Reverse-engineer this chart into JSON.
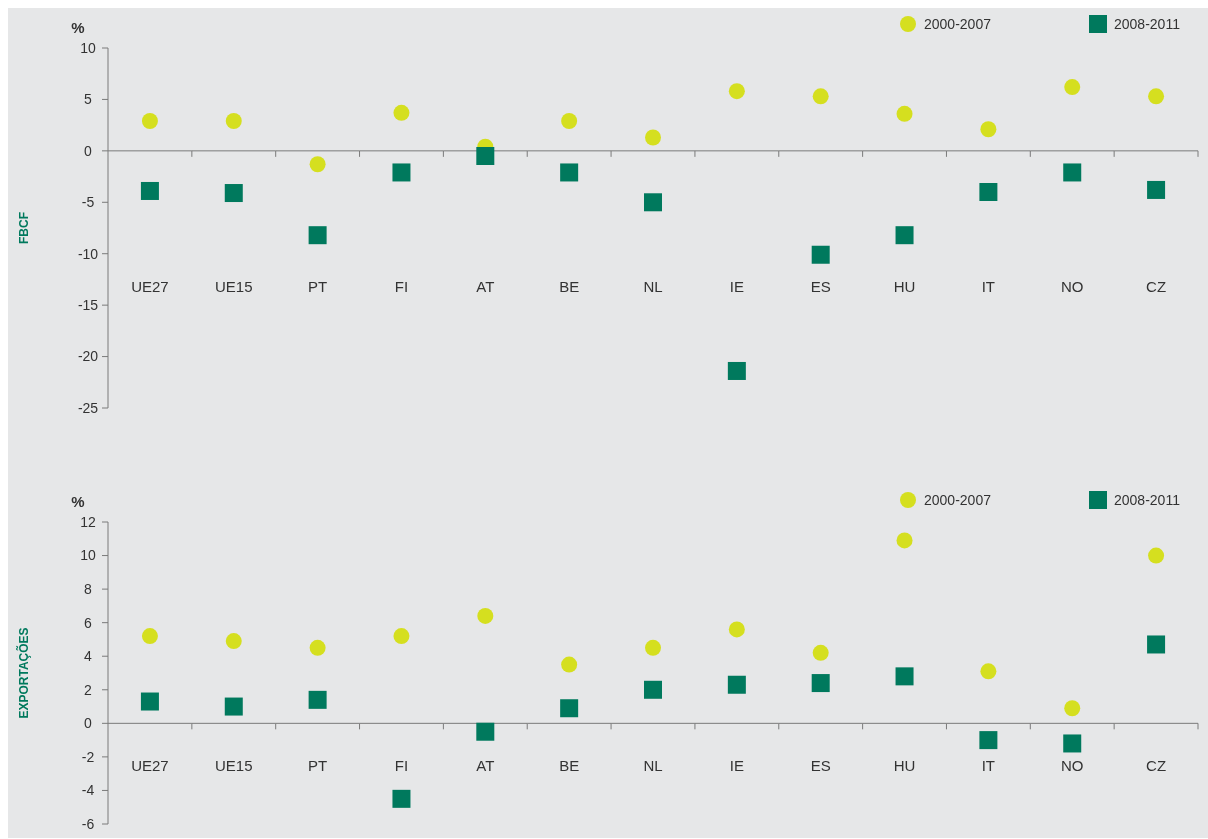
{
  "chart_data": [
    {
      "type": "scatter",
      "ylabel": "FBCF",
      "annotations": [
        "%"
      ],
      "categories": [
        "UE27",
        "UE15",
        "PT",
        "FI",
        "AT",
        "BE",
        "NL",
        "IE",
        "ES",
        "HU",
        "IT",
        "NO",
        "CZ"
      ],
      "ylim": [
        -25,
        10
      ],
      "yticks": [
        -25,
        -20,
        -15,
        -10,
        -5,
        0,
        5,
        10
      ],
      "legend": "top right",
      "grid": false,
      "series": [
        {
          "name": "2000-2007",
          "color": "#d5df1f",
          "marker": "circle",
          "values": [
            2.9,
            2.9,
            -1.3,
            3.7,
            0.4,
            2.9,
            1.3,
            5.8,
            5.3,
            3.6,
            2.1,
            6.2,
            5.3
          ]
        },
        {
          "name": "2008-2011",
          "color": "#00795d",
          "marker": "square",
          "values": [
            -3.9,
            -4.1,
            -8.2,
            -2.1,
            -0.5,
            -2.1,
            -5,
            -21.4,
            -10.1,
            -8.2,
            -4,
            -2.1,
            -3.8
          ]
        }
      ]
    },
    {
      "type": "scatter",
      "ylabel": "EXPORTAÇÕES",
      "annotations": [
        "%"
      ],
      "categories": [
        "UE27",
        "UE15",
        "PT",
        "FI",
        "AT",
        "BE",
        "NL",
        "IE",
        "ES",
        "HU",
        "IT",
        "NO",
        "CZ"
      ],
      "ylim": [
        -6,
        12
      ],
      "yticks": [
        -6,
        -4,
        -2,
        0,
        2,
        4,
        6,
        8,
        10,
        12
      ],
      "legend": "top right",
      "grid": false,
      "series": [
        {
          "name": "2000-2007",
          "color": "#d5df1f",
          "marker": "circle",
          "values": [
            5.2,
            4.9,
            4.5,
            5.2,
            6.4,
            3.5,
            4.5,
            5.6,
            4.2,
            10.9,
            3.1,
            0.9,
            10
          ]
        },
        {
          "name": "2008-2011",
          "color": "#00795d",
          "marker": "square",
          "values": [
            1.3,
            1,
            1.4,
            -4.5,
            -0.5,
            0.9,
            2,
            2.3,
            2.4,
            2.8,
            -1,
            -1.2,
            4.7
          ]
        }
      ]
    }
  ]
}
